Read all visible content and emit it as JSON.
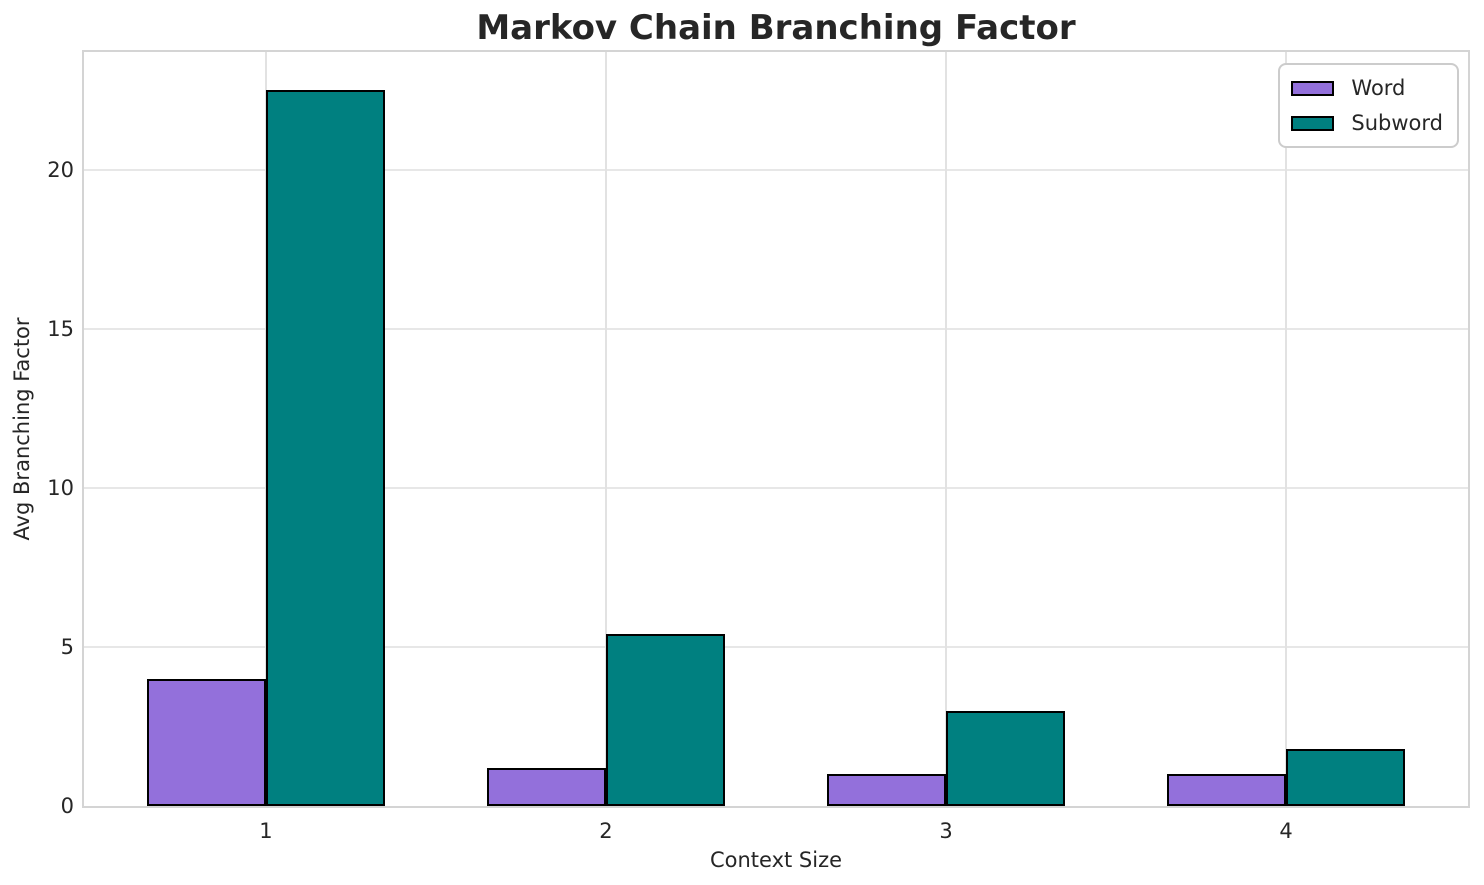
{
  "chart_data": {
    "type": "bar",
    "title": "Markov Chain Branching Factor",
    "xlabel": "Context Size",
    "ylabel": "Avg Branching Factor",
    "categories": [
      "1",
      "2",
      "3",
      "4"
    ],
    "series": [
      {
        "name": "Word",
        "color": "#9370DB",
        "values": [
          4.0,
          1.2,
          1.0,
          1.0
        ]
      },
      {
        "name": "Subword",
        "color": "#008080",
        "values": [
          22.5,
          5.4,
          3.0,
          1.8
        ]
      }
    ],
    "y_ticks": [
      0,
      5,
      10,
      15,
      20
    ],
    "ylim": [
      0,
      23.7
    ],
    "bar_width": 0.35,
    "bar_edge_color": "#000000",
    "grid": true,
    "legend_position": "upper right"
  },
  "style": {
    "background": "#ffffff",
    "grid_color": "#e7e7e7",
    "spine_color": "#d4d4d4",
    "text_color": "#262626"
  }
}
